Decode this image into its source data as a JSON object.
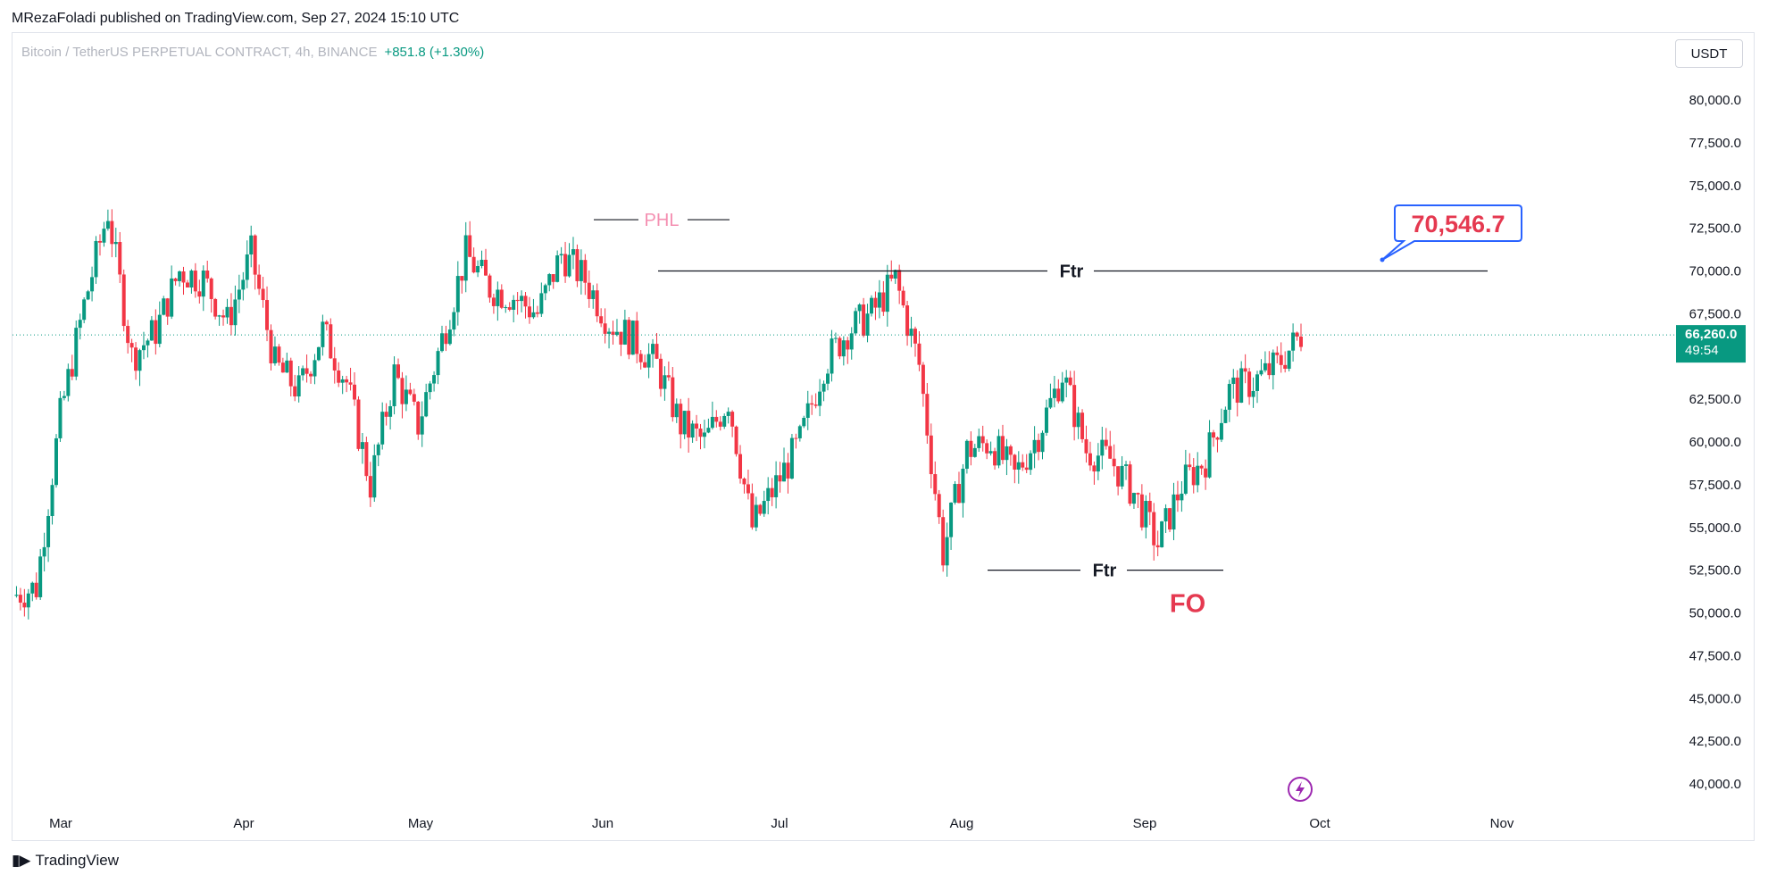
{
  "header": {
    "publisher": "MRezaFoladi published on TradingView.com, Sep 27, 2024 15:10 UTC"
  },
  "legend": {
    "symbol": "Bitcoin / TetherUS PERPETUAL CONTRACT, 4h, BINANCE",
    "change": "+851.8 (+1.30%)"
  },
  "toolbar": {
    "currency": "USDT"
  },
  "price_axis": {
    "labels": [
      "80,000.0",
      "77,500.0",
      "75,000.0",
      "72,500.0",
      "70,000.0",
      "67,500.0",
      "62,500.0",
      "60,000.0",
      "57,500.0",
      "55,000.0",
      "52,500.0",
      "50,000.0",
      "47,500.0",
      "45,000.0",
      "42,500.0",
      "40,000.0"
    ],
    "current_price": "66,260.0",
    "countdown": "49:54"
  },
  "time_axis": {
    "labels": [
      "Mar",
      "Apr",
      "May",
      "Jun",
      "Jul",
      "Aug",
      "Sep",
      "Oct",
      "Nov"
    ]
  },
  "annotations": {
    "phl": "PHL",
    "ftr_top": "Ftr",
    "ftr_bottom": "Ftr",
    "fo": "FO",
    "target_callout": "70,546.7"
  },
  "footer": {
    "brand": "TradingView"
  },
  "colors": {
    "up": "#089981",
    "down": "#f23645",
    "phl": "#f48fb1",
    "fo": "#e53950",
    "callout": "#2962ff",
    "lightning": "#9c27b0"
  },
  "chart_data": {
    "type": "candlestick",
    "symbol": "BTCUSDT.P",
    "timeframe": "4h",
    "ylim": [
      38500,
      81500
    ],
    "y_ticks": [
      40000,
      42500,
      45000,
      47500,
      50000,
      52500,
      55000,
      57500,
      60000,
      62500,
      67500,
      70000,
      72500,
      75000,
      77500,
      80000
    ],
    "x": [
      "Feb 26",
      "Mar 1",
      "Mar 5",
      "Mar 10",
      "Mar 14",
      "Mar 18",
      "Mar 22",
      "Mar 26",
      "Apr 1",
      "Apr 5",
      "Apr 9",
      "Apr 13",
      "Apr 17",
      "Apr 21",
      "Apr 26",
      "May 1",
      "May 5",
      "May 10",
      "May 15",
      "May 20",
      "May 24",
      "May 28",
      "Jun 1",
      "Jun 5",
      "Jun 8",
      "Jun 12",
      "Jun 16",
      "Jun 20",
      "Jun 24",
      "Jun 28",
      "Jul 1",
      "Jul 5",
      "Jul 9",
      "Jul 14",
      "Jul 18",
      "Jul 22",
      "Jul 26",
      "Jul 29",
      "Aug 2",
      "Aug 5",
      "Aug 8",
      "Aug 12",
      "Aug 16",
      "Aug 20",
      "Aug 24",
      "Aug 28",
      "Sep 1",
      "Sep 4",
      "Sep 7",
      "Sep 11",
      "Sep 15",
      "Sep 19",
      "Sep 22",
      "Sep 25",
      "Sep 27"
    ],
    "close": [
      51000,
      51500,
      61500,
      68000,
      73500,
      65000,
      66500,
      70000,
      69500,
      67000,
      71000,
      64500,
      63000,
      66500,
      63500,
      57500,
      64000,
      61000,
      66000,
      71000,
      69000,
      68500,
      67500,
      71000,
      69500,
      67000,
      66000,
      64500,
      61000,
      60000,
      62500,
      55000,
      57500,
      60000,
      64500,
      66500,
      67500,
      69500,
      64500,
      53500,
      59500,
      60000,
      58000,
      60500,
      64000,
      59500,
      59000,
      57000,
      54000,
      57500,
      59000,
      63000,
      63500,
      64500,
      66260
    ],
    "levels": [
      {
        "label": "Ftr",
        "price": 70000
      },
      {
        "label": "Ftr",
        "price": 52500
      },
      {
        "label": "PHL",
        "price": 73000
      }
    ],
    "target": 70546.7,
    "last_price": 66260.0
  }
}
